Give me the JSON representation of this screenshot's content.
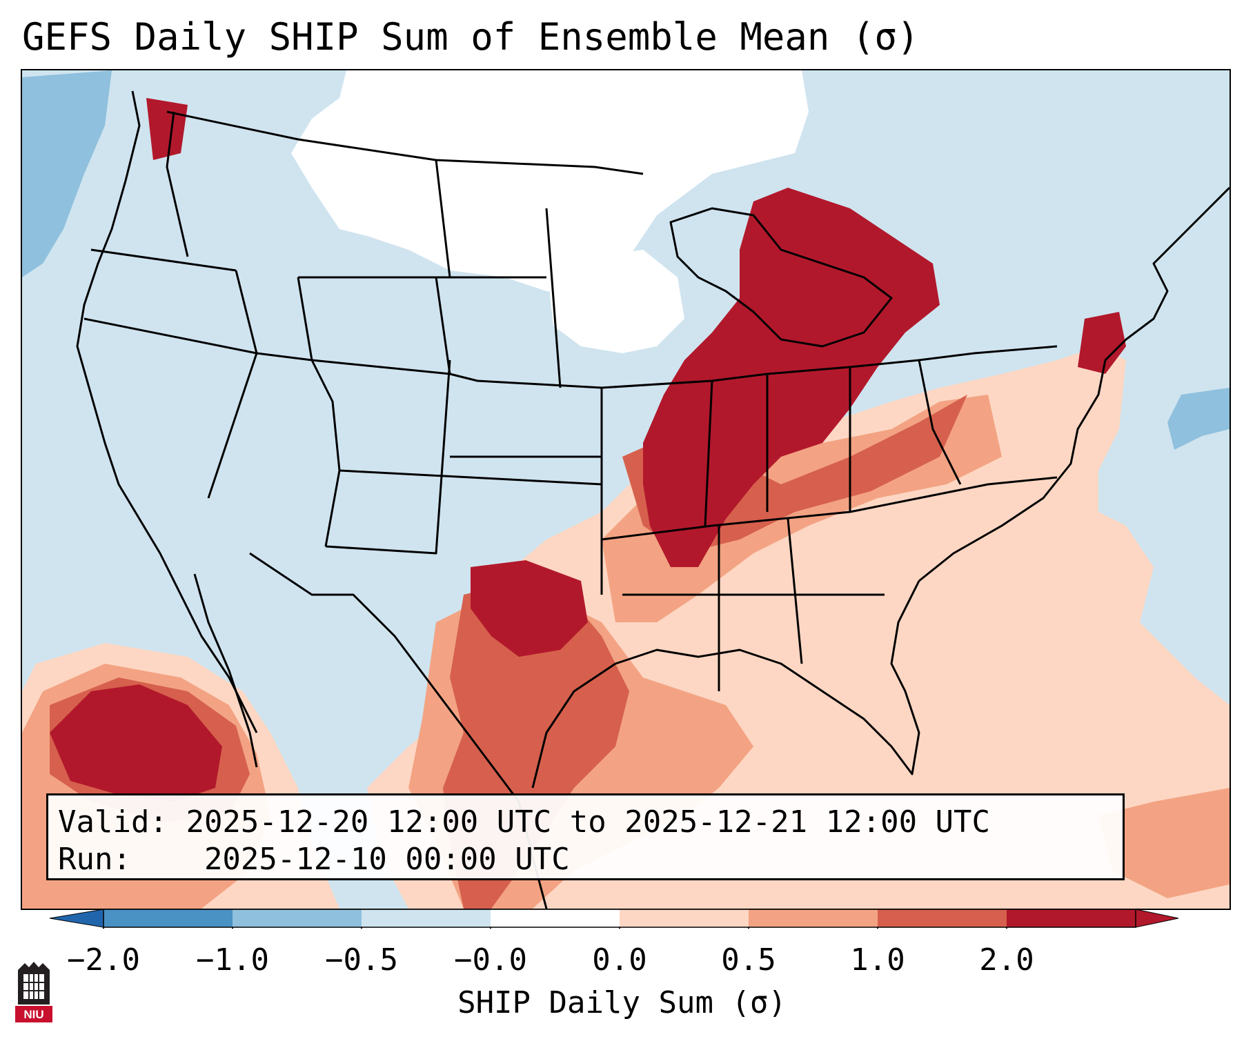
{
  "title": "GEFS Daily SHIP Sum of Ensemble Mean (σ)",
  "info": {
    "valid_label": "Valid:",
    "valid_value": "2025-12-20 12:00 UTC to 2025-12-21 12:00 UTC",
    "run_label": "Run:",
    "run_value": "2025-12-10 00:00 UTC"
  },
  "colorbar": {
    "label": "SHIP Daily Sum (σ)",
    "ticks": [
      "−2.0",
      "−1.0",
      "−0.5",
      "−0.0",
      "0.0",
      "0.5",
      "1.0",
      "2.0"
    ],
    "bins": [
      "#4a91c4",
      "#8fc0dd",
      "#cfe4ef",
      "#ffffff",
      "#fdd7c4",
      "#f3a383",
      "#d6604d",
      "#b2182b"
    ],
    "under_color": "#2166ac",
    "over_color": "#b2182b"
  },
  "map_colors": {
    "ocean_land": "#cfe4ef",
    "near_zero": "#ffffff",
    "light_neg": "#8fc0dd",
    "light_pos": "#fdd7c4",
    "mid_pos": "#f3a383",
    "high_pos": "#d6604d",
    "top_pos": "#b2182b",
    "borders": "#000000"
  },
  "logo": {
    "text": "NIU",
    "icon": "niu-logo-icon"
  }
}
